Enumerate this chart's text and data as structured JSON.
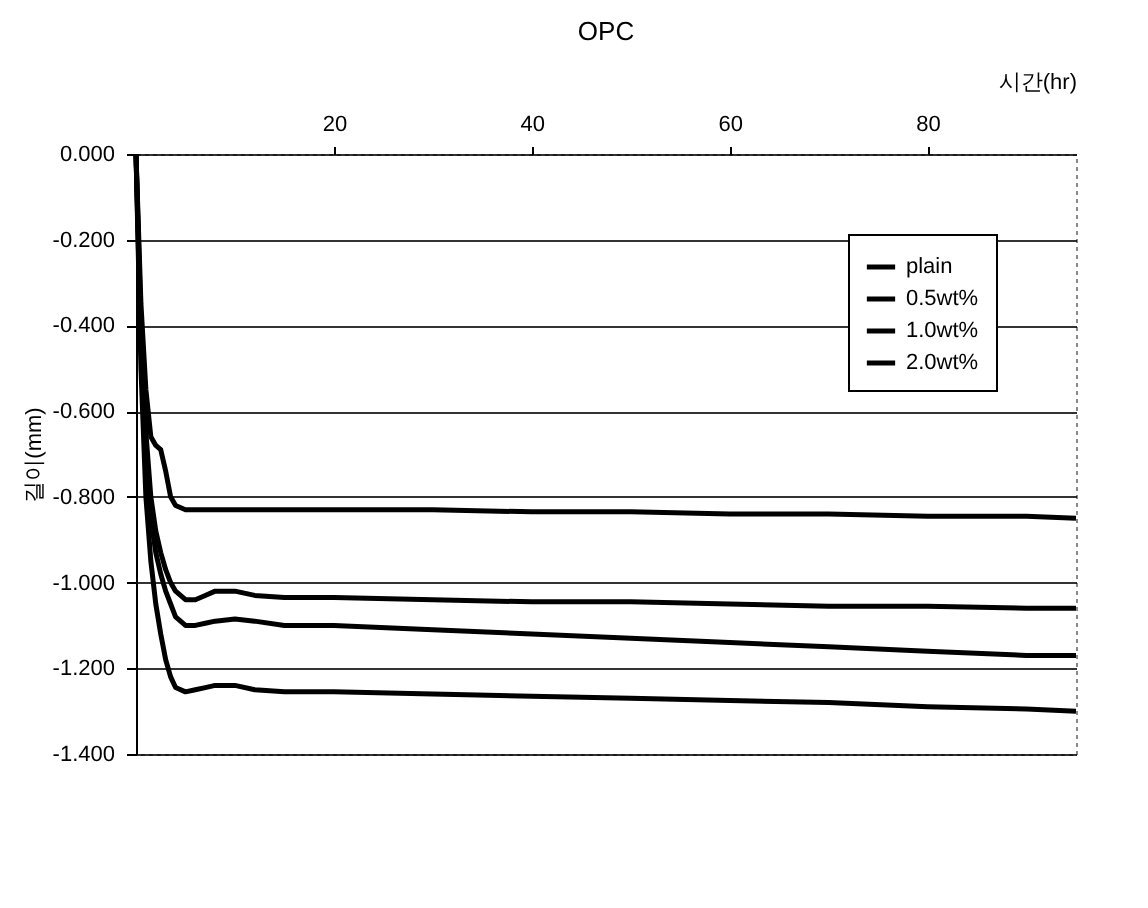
{
  "chart_data": {
    "type": "line",
    "title": "OPC",
    "xlabel": "시간(hr)",
    "ylabel": "길이(mm)",
    "xlim": [
      0,
      95
    ],
    "xticks": [
      20,
      40,
      60,
      80
    ],
    "ylim": [
      -1.4,
      0
    ],
    "yticks": [
      {
        "value": 0,
        "label": "0.000"
      },
      {
        "value": -0.2,
        "label": "-0.200"
      },
      {
        "value": -0.4,
        "label": "-0.400"
      },
      {
        "value": -0.6,
        "label": "-0.600"
      },
      {
        "value": -0.8,
        "label": "-0.800"
      },
      {
        "value": -1.0,
        "label": "-1.000"
      },
      {
        "value": -1.2,
        "label": "-1.200"
      },
      {
        "value": -1.4,
        "label": "-1.400"
      }
    ],
    "grid": "y",
    "legend": "top right",
    "marker": "none",
    "line_style": "solid",
    "x": [
      0,
      0.5,
      1,
      1.5,
      2,
      2.5,
      3,
      3.5,
      4,
      5,
      6,
      7,
      8,
      10,
      12,
      15,
      20,
      30,
      40,
      50,
      60,
      70,
      80,
      90,
      95
    ],
    "series": [
      {
        "name": "plain",
        "color": "#000000",
        "values": [
          0,
          -0.35,
          -0.55,
          -0.66,
          -0.68,
          -0.69,
          -0.74,
          -0.8,
          -0.82,
          -0.83,
          -0.83,
          -0.83,
          -0.83,
          -0.83,
          -0.83,
          -0.83,
          -0.83,
          -0.83,
          -0.835,
          -0.835,
          -0.84,
          -0.84,
          -0.845,
          -0.845,
          -0.85
        ]
      },
      {
        "name": "0.5wt%",
        "color": "#000000",
        "values": [
          0,
          -0.4,
          -0.65,
          -0.8,
          -0.88,
          -0.93,
          -0.97,
          -1.0,
          -1.02,
          -1.04,
          -1.04,
          -1.03,
          -1.02,
          -1.02,
          -1.03,
          -1.035,
          -1.035,
          -1.04,
          -1.045,
          -1.045,
          -1.05,
          -1.055,
          -1.055,
          -1.06,
          -1.06
        ]
      },
      {
        "name": "1.0wt%",
        "color": "#000000",
        "values": [
          0,
          -0.45,
          -0.7,
          -0.85,
          -0.93,
          -0.98,
          -1.02,
          -1.05,
          -1.08,
          -1.1,
          -1.1,
          -1.095,
          -1.09,
          -1.085,
          -1.09,
          -1.1,
          -1.1,
          -1.11,
          -1.12,
          -1.13,
          -1.14,
          -1.15,
          -1.16,
          -1.17,
          -1.17
        ]
      },
      {
        "name": "2.0wt%",
        "color": "#000000",
        "values": [
          0,
          -0.5,
          -0.8,
          -0.95,
          -1.05,
          -1.12,
          -1.18,
          -1.22,
          -1.245,
          -1.255,
          -1.25,
          -1.245,
          -1.24,
          -1.24,
          -1.25,
          -1.255,
          -1.255,
          -1.26,
          -1.265,
          -1.27,
          -1.275,
          -1.28,
          -1.29,
          -1.295,
          -1.3
        ]
      }
    ]
  }
}
